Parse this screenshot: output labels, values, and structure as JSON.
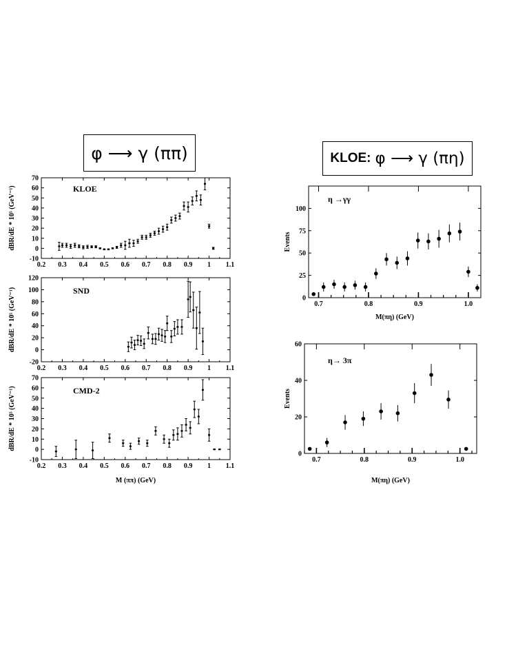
{
  "titles": {
    "left_formula": "φ ⟶ γ (ππ)",
    "right_prefix": "KLOE:",
    "right_formula": "φ ⟶ γ (πη)"
  },
  "chart_data": [
    {
      "type": "scatter",
      "id": "kloe",
      "label": "KLOE",
      "ylabel": "dBR/dE * 10⁵ (GeV⁻¹)",
      "xlabel": "",
      "xlim": [
        0.2,
        1.1
      ],
      "ylim": [
        -10,
        70
      ],
      "xticks": [
        0.2,
        0.3,
        0.4,
        0.5,
        0.6,
        0.7,
        0.8,
        0.9,
        1.0,
        1.1
      ],
      "xticklabels": [
        "0.2",
        "0.3",
        "0.4",
        "0.5",
        "0.6",
        "0.7",
        "0.8",
        "0.9",
        "1",
        "1.1"
      ],
      "yticks": [
        -10,
        0,
        10,
        20,
        30,
        40,
        50,
        60,
        70
      ],
      "points": [
        [
          0.285,
          2,
          4
        ],
        [
          0.3,
          3,
          2
        ],
        [
          0.32,
          3,
          2
        ],
        [
          0.34,
          2,
          2
        ],
        [
          0.36,
          3,
          2
        ],
        [
          0.38,
          2,
          1.5
        ],
        [
          0.4,
          1,
          1.5
        ],
        [
          0.42,
          1.5,
          1.5
        ],
        [
          0.44,
          1.5,
          1
        ],
        [
          0.46,
          1.5,
          1
        ],
        [
          0.48,
          0,
          0.5
        ],
        [
          0.5,
          -1,
          0.5
        ],
        [
          0.52,
          -1,
          0.5
        ],
        [
          0.54,
          0,
          0.5
        ],
        [
          0.56,
          1,
          1
        ],
        [
          0.58,
          3,
          2
        ],
        [
          0.6,
          3,
          4
        ],
        [
          0.62,
          5,
          4
        ],
        [
          0.64,
          5,
          3
        ],
        [
          0.66,
          7,
          2
        ],
        [
          0.68,
          11,
          2
        ],
        [
          0.7,
          11,
          2
        ],
        [
          0.72,
          13,
          2
        ],
        [
          0.74,
          15,
          2
        ],
        [
          0.76,
          17,
          3
        ],
        [
          0.78,
          19,
          3
        ],
        [
          0.8,
          21,
          3
        ],
        [
          0.82,
          28,
          3
        ],
        [
          0.84,
          30,
          3
        ],
        [
          0.86,
          32,
          3
        ],
        [
          0.88,
          42,
          4
        ],
        [
          0.9,
          41,
          5
        ],
        [
          0.92,
          47,
          4
        ],
        [
          0.94,
          52,
          5
        ],
        [
          0.96,
          48,
          5
        ],
        [
          0.98,
          64,
          6
        ],
        [
          1.0,
          22,
          2
        ],
        [
          1.02,
          0,
          1
        ]
      ]
    },
    {
      "type": "scatter",
      "id": "snd",
      "label": "SND",
      "ylabel": "dBR/dE * 10⁵ (GeV⁻¹)",
      "xlabel": "",
      "xlim": [
        0.2,
        1.1
      ],
      "ylim": [
        -20,
        120
      ],
      "xticks": [
        0.2,
        0.3,
        0.4,
        0.5,
        0.6,
        0.7,
        0.8,
        0.9,
        1.0,
        1.1
      ],
      "xticklabels": [
        "0.2",
        "0.3",
        "0.4",
        "0.5",
        "0.6",
        "0.7",
        "0.8",
        "0.9",
        "1",
        "1.1"
      ],
      "yticks": [
        -20,
        0,
        20,
        40,
        60,
        80,
        100,
        120
      ],
      "points": [
        [
          0.615,
          5,
          8
        ],
        [
          0.63,
          12,
          9
        ],
        [
          0.645,
          8,
          8
        ],
        [
          0.66,
          16,
          8
        ],
        [
          0.675,
          15,
          8
        ],
        [
          0.69,
          10,
          8
        ],
        [
          0.71,
          28,
          10
        ],
        [
          0.73,
          18,
          8
        ],
        [
          0.745,
          18,
          9
        ],
        [
          0.76,
          26,
          10
        ],
        [
          0.775,
          24,
          10
        ],
        [
          0.79,
          22,
          10
        ],
        [
          0.8,
          44,
          12
        ],
        [
          0.82,
          22,
          10
        ],
        [
          0.835,
          35,
          12
        ],
        [
          0.85,
          38,
          12
        ],
        [
          0.87,
          38,
          12
        ],
        [
          0.9,
          84,
          30
        ],
        [
          0.91,
          88,
          25
        ],
        [
          0.925,
          66,
          30
        ],
        [
          0.94,
          36,
          35
        ],
        [
          0.955,
          62,
          35
        ],
        [
          0.97,
          14,
          22
        ]
      ]
    },
    {
      "type": "scatter",
      "id": "cmd2",
      "label": "CMD-2",
      "ylabel": "dBR/dE * 10⁵ (GeV⁻¹)",
      "xlabel": "M (ππ) (GeV)",
      "xlim": [
        0.2,
        1.1
      ],
      "ylim": [
        -10,
        70
      ],
      "xticks": [
        0.2,
        0.3,
        0.4,
        0.5,
        0.6,
        0.7,
        0.8,
        0.9,
        1.0,
        1.1
      ],
      "xticklabels": [
        "0.2",
        "0.3",
        "0.4",
        "0.5",
        "0.6",
        "0.7",
        "0.8",
        "0.9",
        "1",
        "1.1"
      ],
      "yticks": [
        -10,
        0,
        10,
        20,
        30,
        40,
        50,
        60,
        70
      ],
      "points": [
        [
          0.27,
          -2,
          5
        ],
        [
          0.365,
          0,
          9
        ],
        [
          0.445,
          -1,
          8
        ],
        [
          0.525,
          11,
          4
        ],
        [
          0.59,
          6,
          3
        ],
        [
          0.625,
          3,
          3
        ],
        [
          0.665,
          8,
          3
        ],
        [
          0.705,
          6,
          3
        ],
        [
          0.745,
          18,
          4
        ],
        [
          0.785,
          10,
          4
        ],
        [
          0.81,
          6,
          4
        ],
        [
          0.83,
          14,
          5
        ],
        [
          0.85,
          15,
          6
        ],
        [
          0.87,
          18,
          6
        ],
        [
          0.89,
          24,
          6
        ],
        [
          0.91,
          21,
          6
        ],
        [
          0.93,
          39,
          8
        ],
        [
          0.95,
          32,
          7
        ],
        [
          0.97,
          58,
          10
        ],
        [
          1.0,
          14,
          6
        ],
        [
          1.025,
          0,
          0.3
        ],
        [
          1.05,
          0,
          0.3
        ]
      ]
    },
    {
      "type": "scatter",
      "id": "eta_gg",
      "label": "η →γγ",
      "ylabel": "Events",
      "xlabel": "M(πη) (GeV)",
      "xlim": [
        0.68,
        1.025
      ],
      "ylim": [
        0,
        125
      ],
      "xticks": [
        0.7,
        0.8,
        0.9,
        1.0
      ],
      "xticklabels": [
        "0.7",
        "0.8",
        "0.9",
        "1.0"
      ],
      "yticks": [
        0,
        25,
        50,
        75,
        100
      ],
      "points": [
        [
          0.69,
          4,
          0
        ],
        [
          0.71,
          12,
          5
        ],
        [
          0.731,
          15,
          5
        ],
        [
          0.752,
          12,
          5
        ],
        [
          0.773,
          14,
          5
        ],
        [
          0.794,
          12,
          5
        ],
        [
          0.815,
          27,
          6
        ],
        [
          0.836,
          43,
          7
        ],
        [
          0.857,
          39,
          7
        ],
        [
          0.878,
          44,
          8
        ],
        [
          0.899,
          64,
          9
        ],
        [
          0.92,
          63,
          9
        ],
        [
          0.941,
          66,
          10
        ],
        [
          0.962,
          72,
          10
        ],
        [
          0.983,
          74,
          10
        ],
        [
          1.0,
          29,
          6
        ],
        [
          1.018,
          11,
          4
        ]
      ]
    },
    {
      "type": "scatter",
      "id": "eta_3pi",
      "label": "η→ 3π",
      "ylabel": "Events",
      "xlabel": "M(πη) (GeV)",
      "xlim": [
        0.675,
        1.035
      ],
      "ylim": [
        0,
        60
      ],
      "xticks": [
        0.7,
        0.8,
        0.9,
        1.0
      ],
      "xticklabels": [
        "0.7",
        "0.8",
        "0.9",
        "1.0"
      ],
      "yticks": [
        0,
        20,
        40,
        60
      ],
      "points": [
        [
          0.686,
          2.5,
          0
        ],
        [
          0.722,
          6,
          2.5
        ],
        [
          0.76,
          17,
          4
        ],
        [
          0.798,
          19,
          4
        ],
        [
          0.835,
          23,
          4.5
        ],
        [
          0.87,
          22,
          4.5
        ],
        [
          0.905,
          33,
          5.5
        ],
        [
          0.94,
          43,
          6
        ],
        [
          0.976,
          29.5,
          5
        ],
        [
          1.013,
          2.5,
          0
        ]
      ]
    }
  ]
}
